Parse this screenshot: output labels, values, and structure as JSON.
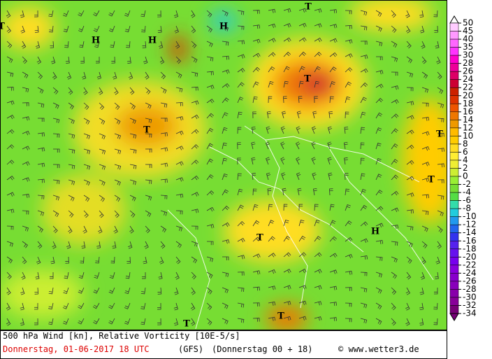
{
  "title": "500 hPa Wind [kn], Relative Vorticity [10E-5/s]",
  "date_line": "Donnerstag, 01-06-2017  18 UTC",
  "model": "(GFS)",
  "run": "(Donnerstag 00 + 18)",
  "credit": "© www.wetter3.de",
  "centers": [
    {
      "label": "T"
    },
    {
      "label": "H"
    },
    {
      "label": "H"
    },
    {
      "label": "H"
    },
    {
      "label": "T"
    },
    {
      "label": "T"
    },
    {
      "label": "T"
    },
    {
      "label": "T"
    },
    {
      "label": "T"
    },
    {
      "label": "T"
    },
    {
      "label": "H"
    },
    {
      "label": "T"
    },
    {
      "label": "T"
    }
  ],
  "colorbar": {
    "levels": [
      50,
      45,
      40,
      35,
      30,
      28,
      26,
      24,
      22,
      20,
      18,
      16,
      14,
      12,
      10,
      8,
      6,
      4,
      2,
      0,
      -2,
      -4,
      -6,
      -8,
      -10,
      -12,
      -14,
      -16,
      -18,
      -20,
      -22,
      -24,
      -26,
      -28,
      -30,
      -32,
      -34
    ],
    "colors": [
      "#ffffff",
      "#ffccff",
      "#ff99ff",
      "#ff66ff",
      "#ff33ff",
      "#ff00cc",
      "#ee0099",
      "#dd0066",
      "#cc0033",
      "#cc2200",
      "#dd3300",
      "#ee5500",
      "#ee7700",
      "#ee9900",
      "#ffbb00",
      "#ffcc00",
      "#ffdd22",
      "#ffee33",
      "#eeee33",
      "#ccee33",
      "#99ee33",
      "#77dd33",
      "#55dd44",
      "#33ddaa",
      "#22ccdd",
      "#2299ee",
      "#2266ee",
      "#3333ee",
      "#5522ee",
      "#6611ee",
      "#7700ee",
      "#8800dd",
      "#8800cc",
      "#8800bb",
      "#8800aa",
      "#880099",
      "#770077"
    ]
  }
}
